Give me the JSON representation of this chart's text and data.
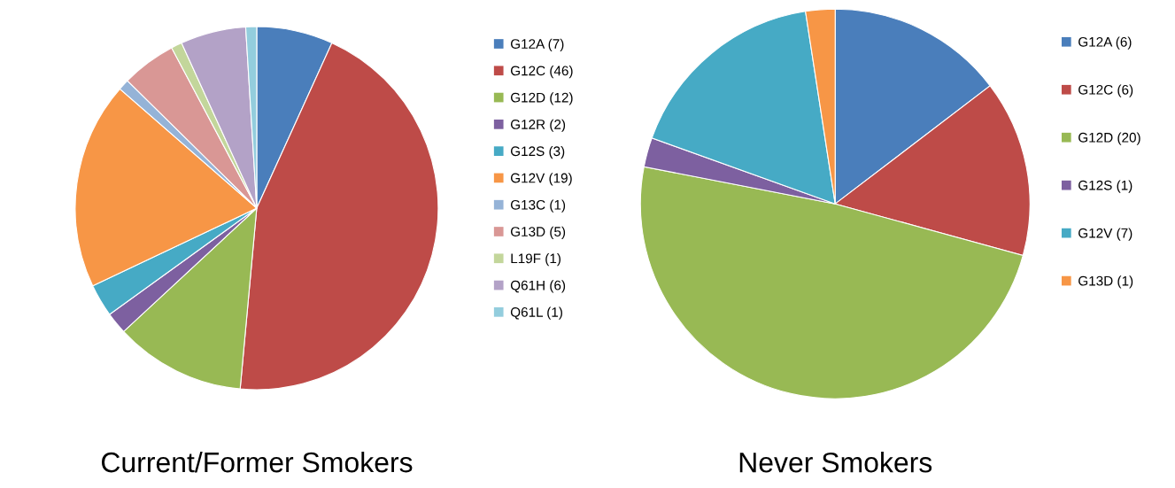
{
  "chart_data": [
    {
      "type": "pie",
      "title": "Current/Former Smokers",
      "categories": [
        "G12A (7)",
        "G12C (46)",
        "G12D (12)",
        "G12R (2)",
        "G12S (3)",
        "G12V (19)",
        "G13C (1)",
        "G13D (5)",
        "L19F (1)",
        "Q61H (6)",
        "Q61L (1)"
      ],
      "values": [
        7,
        46,
        12,
        2,
        3,
        19,
        1,
        5,
        1,
        6,
        1
      ],
      "colors": [
        "#4a7ebb",
        "#be4b48",
        "#98b954",
        "#7d60a0",
        "#46aac5",
        "#f79646",
        "#95b3d7",
        "#d99795",
        "#c3d69b",
        "#b3a2c7",
        "#93cddd"
      ],
      "legend": "right"
    },
    {
      "type": "pie",
      "title": "Never Smokers",
      "categories": [
        "G12A (6)",
        "G12C (6)",
        "G12D (20)",
        "G12S (1)",
        "G12V (7)",
        "G13D (1)"
      ],
      "values": [
        6,
        6,
        20,
        1,
        7,
        1
      ],
      "colors": [
        "#4a7ebb",
        "#be4b48",
        "#98b954",
        "#7d60a0",
        "#46aac5",
        "#f79646"
      ],
      "legend": "right"
    }
  ]
}
